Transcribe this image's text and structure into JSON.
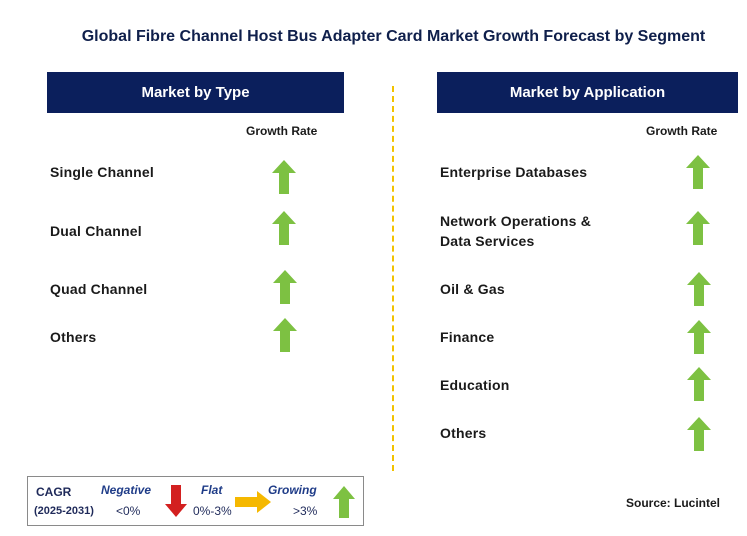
{
  "title": "Global Fibre Channel Host Bus Adapter Card Market Growth Forecast by Segment",
  "left_panel": {
    "header": "Market by Type",
    "growth_rate_label": "Growth Rate",
    "items": [
      {
        "label": "Single Channel",
        "trend": "growing"
      },
      {
        "label": "Dual Channel",
        "trend": "growing"
      },
      {
        "label": "Quad Channel",
        "trend": "growing"
      },
      {
        "label": "Others",
        "trend": "growing"
      }
    ]
  },
  "right_panel": {
    "header": "Market by Application",
    "growth_rate_label": "Growth Rate",
    "items": [
      {
        "label_line1": "Enterprise Databases",
        "label_line2": "",
        "trend": "growing"
      },
      {
        "label_line1": "Network Operations &",
        "label_line2": "Data Services",
        "trend": "growing"
      },
      {
        "label_line1": "Oil & Gas",
        "label_line2": "",
        "trend": "growing"
      },
      {
        "label_line1": "Finance",
        "label_line2": "",
        "trend": "growing"
      },
      {
        "label_line1": "Education",
        "label_line2": "",
        "trend": "growing"
      },
      {
        "label_line1": "Others",
        "label_line2": "",
        "trend": "growing"
      }
    ]
  },
  "legend": {
    "cagr_label": "CAGR",
    "years": "(2025-2031)",
    "negative": {
      "label": "Negative",
      "range": "<0%"
    },
    "flat": {
      "label": "Flat",
      "range": "0%-3%"
    },
    "growing": {
      "label": "Growing",
      "range": ">3%"
    }
  },
  "source": "Source: Lucintel",
  "colors": {
    "header_bg": "#0b1f5c",
    "growing": "#7dc142",
    "negative": "#d32020",
    "flat": "#f5b800",
    "divider": "#f2c200"
  }
}
